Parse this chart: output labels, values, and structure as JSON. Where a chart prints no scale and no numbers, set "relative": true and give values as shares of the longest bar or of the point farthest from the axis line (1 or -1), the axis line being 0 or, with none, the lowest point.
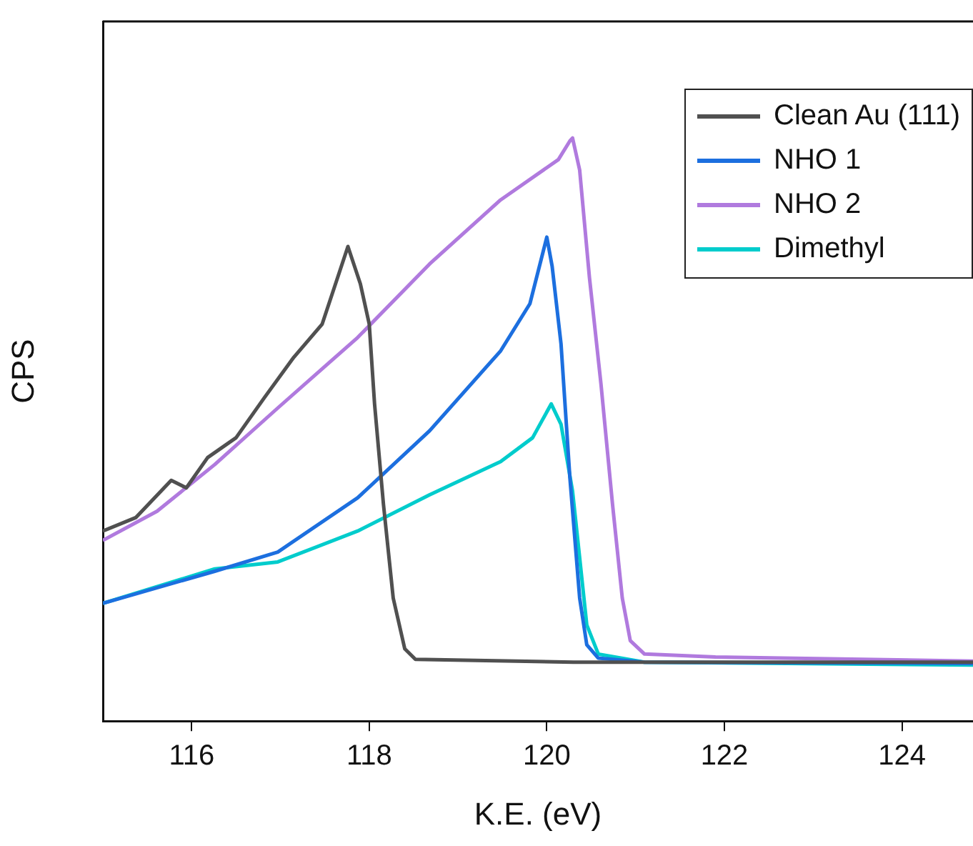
{
  "chart_data": {
    "type": "line",
    "xlabel": "K.E. (eV)",
    "ylabel": "CPS",
    "relative": true,
    "xlim": [
      115,
      124.8
    ],
    "xticks": [
      116,
      118,
      120,
      122,
      124
    ],
    "tick_labels": "x",
    "grid": false,
    "legend": "top right",
    "marker": "none",
    "line_style": "solid",
    "series": [
      {
        "name": "Clean Au (111)",
        "color": "#505050",
        "x": [
          115.0,
          115.37,
          115.77,
          115.94,
          116.18,
          116.5,
          116.82,
          117.15,
          117.47,
          117.76,
          117.9,
          118.0,
          118.06,
          118.16,
          118.27,
          118.4,
          118.52,
          120.3,
          124.8
        ],
        "values": [
          0.326,
          0.349,
          0.413,
          0.4,
          0.452,
          0.486,
          0.555,
          0.624,
          0.681,
          0.814,
          0.75,
          0.681,
          0.544,
          0.372,
          0.211,
          0.124,
          0.106,
          0.101,
          0.101
        ]
      },
      {
        "name": "NHO 1",
        "color": "#1c6fdf",
        "x": [
          115.0,
          116.26,
          116.97,
          117.87,
          118.68,
          119.48,
          119.81,
          120.0,
          120.06,
          120.16,
          120.26,
          120.37,
          120.45,
          120.58,
          121.1,
          124.8
        ],
        "values": [
          0.202,
          0.257,
          0.29,
          0.383,
          0.498,
          0.635,
          0.716,
          0.83,
          0.78,
          0.647,
          0.417,
          0.211,
          0.131,
          0.108,
          0.101,
          0.099
        ]
      },
      {
        "name": "NHO 2",
        "color": "#b07ade",
        "x": [
          115.0,
          115.61,
          116.26,
          116.97,
          117.87,
          118.68,
          119.48,
          120.13,
          120.26,
          120.29,
          120.37,
          120.48,
          120.61,
          120.74,
          120.85,
          120.94,
          121.1,
          121.9,
          124.8
        ],
        "values": [
          0.31,
          0.36,
          0.44,
          0.537,
          0.658,
          0.784,
          0.894,
          0.963,
          0.995,
          1.0,
          0.945,
          0.761,
          0.578,
          0.372,
          0.211,
          0.138,
          0.115,
          0.11,
          0.103
        ]
      },
      {
        "name": "Dimethyl",
        "color": "#00cccc",
        "x": [
          115.0,
          116.26,
          116.97,
          117.87,
          118.68,
          119.48,
          119.84,
          120.05,
          120.16,
          120.29,
          120.37,
          120.45,
          120.58,
          121.1,
          124.8
        ],
        "values": [
          0.202,
          0.261,
          0.273,
          0.326,
          0.388,
          0.445,
          0.486,
          0.544,
          0.509,
          0.394,
          0.28,
          0.165,
          0.115,
          0.101,
          0.096
        ]
      }
    ]
  }
}
